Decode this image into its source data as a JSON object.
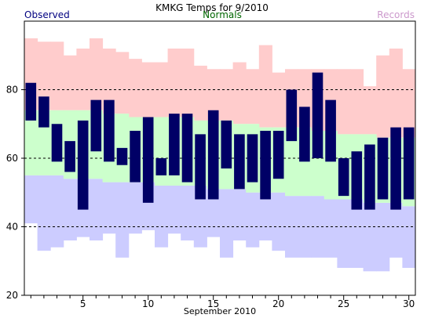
{
  "chart_data": {
    "type": "bar",
    "title": "KMKG Temps for 9/2010",
    "xlabel": "September 2010",
    "ylabel": "",
    "legend": [
      "Observed",
      "Normals",
      "Records"
    ],
    "legend_placement": "top",
    "xlim": [
      0.5,
      30.5
    ],
    "ylim": [
      20,
      100
    ],
    "x_ticks": [
      5,
      10,
      15,
      20,
      25,
      30
    ],
    "y_ticks": [
      20,
      40,
      60,
      80
    ],
    "gridlines_dashed_at": [
      40,
      60,
      80
    ],
    "colors": {
      "observed": "#000066",
      "normals": "#ccffcc",
      "record_high": "#ffcccc",
      "record_low": "#ccccff",
      "legend_observed": "#000080",
      "legend_normals": "#006600",
      "legend_records": "#cc99cc"
    },
    "days": [
      1,
      2,
      3,
      4,
      5,
      6,
      7,
      8,
      9,
      10,
      11,
      12,
      13,
      14,
      15,
      16,
      17,
      18,
      19,
      20,
      21,
      22,
      23,
      24,
      25,
      26,
      27,
      28,
      29,
      30
    ],
    "series": [
      {
        "name": "Observed",
        "kind": "range",
        "high": [
          82,
          78,
          70,
          65,
          71,
          77,
          77,
          63,
          68,
          72,
          60,
          73,
          73,
          67,
          74,
          71,
          67,
          67,
          68,
          68,
          80,
          75,
          85,
          77,
          60,
          62,
          64,
          66,
          69,
          69
        ],
        "low": [
          71,
          69,
          59,
          56,
          45,
          62,
          59,
          58,
          53,
          47,
          55,
          55,
          53,
          48,
          48,
          57,
          51,
          53,
          48,
          54,
          65,
          59,
          60,
          59,
          49,
          45,
          45,
          48,
          45,
          48
        ]
      },
      {
        "name": "Normals",
        "kind": "range",
        "high": [
          74,
          74,
          74,
          74,
          74,
          74,
          73,
          73,
          72,
          72,
          72,
          72,
          72,
          71,
          71,
          71,
          70,
          70,
          69,
          69,
          69,
          69,
          68,
          68,
          67,
          67,
          67,
          66,
          66,
          66
        ],
        "low": [
          55,
          55,
          55,
          54,
          54,
          54,
          53,
          53,
          53,
          53,
          52,
          52,
          52,
          52,
          51,
          51,
          51,
          50,
          50,
          50,
          49,
          49,
          49,
          48,
          48,
          48,
          47,
          47,
          47,
          46
        ]
      },
      {
        "name": "Records",
        "kind": "range",
        "high": [
          95,
          94,
          94,
          90,
          92,
          95,
          92,
          91,
          89,
          88,
          88,
          92,
          92,
          87,
          86,
          86,
          88,
          86,
          93,
          85,
          86,
          86,
          86,
          86,
          86,
          86,
          81,
          90,
          92,
          86
        ],
        "low": [
          41,
          33,
          34,
          36,
          37,
          36,
          38,
          31,
          38,
          39,
          34,
          38,
          36,
          34,
          37,
          31,
          36,
          34,
          36,
          33,
          31,
          31,
          31,
          31,
          28,
          28,
          27,
          27,
          31,
          28
        ]
      }
    ]
  }
}
